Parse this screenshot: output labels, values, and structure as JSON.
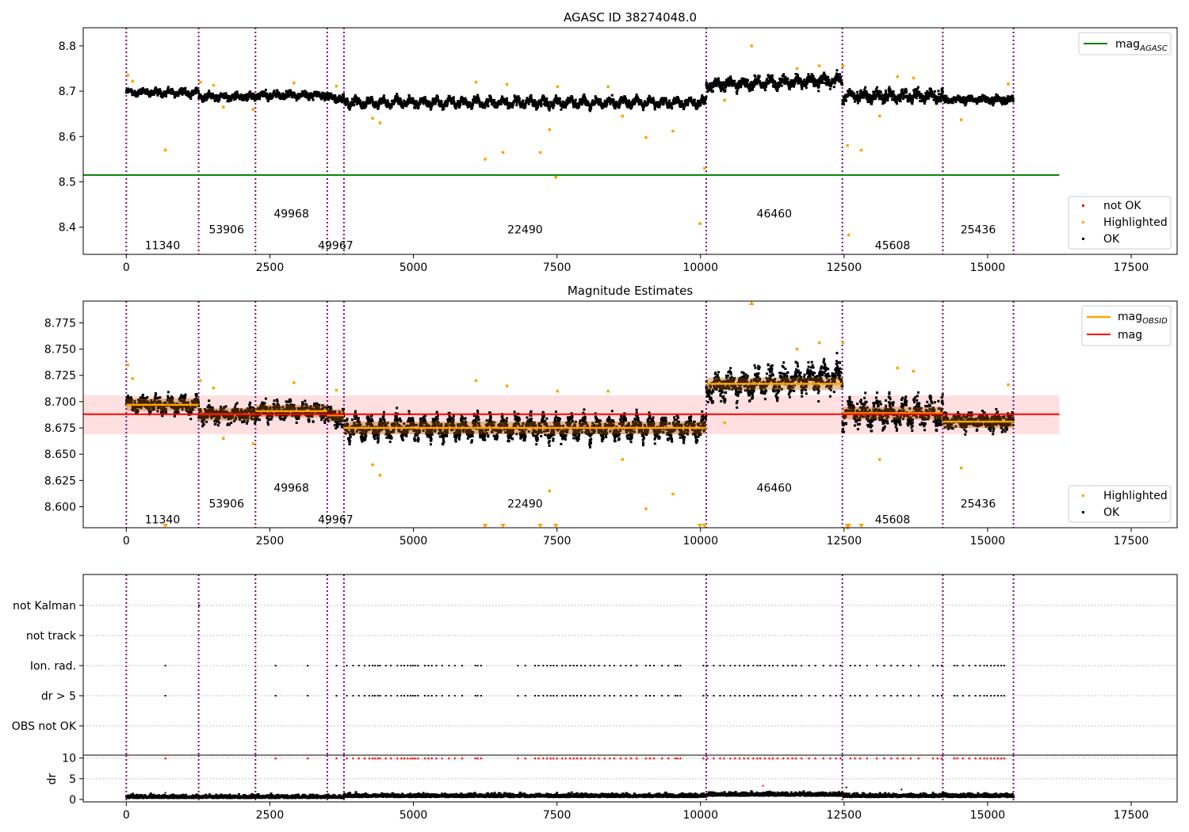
{
  "chart_data": [
    {
      "type": "scatter",
      "title": "AGASC ID 38274048.0",
      "xlim": [
        -750,
        18300
      ],
      "ylim": [
        8.34,
        8.84
      ],
      "xticks": [
        0,
        2500,
        5000,
        7500,
        10000,
        12500,
        15000,
        17500
      ],
      "xtick_labels": [
        "0",
        "2500",
        "5000",
        "7500",
        "10000",
        "12500",
        "15000",
        "17500"
      ],
      "yticks": [
        8.4,
        8.5,
        8.6,
        8.7,
        8.8
      ],
      "ytick_labels": [
        "8.4",
        "8.5",
        "8.6",
        "8.7",
        "8.8"
      ],
      "obsid_boundaries": [
        0,
        1260,
        2250,
        3500,
        3790,
        10100,
        12470,
        14220,
        15450
      ],
      "obsid_labels": [
        {
          "text": "11340",
          "x": 630,
          "y": 8.36
        },
        {
          "text": "53906",
          "x": 1745,
          "y": 8.395
        },
        {
          "text": "49968",
          "x": 2875,
          "y": 8.43
        },
        {
          "text": "49967",
          "x": 3645,
          "y": 8.36
        },
        {
          "text": "22490",
          "x": 6945,
          "y": 8.395
        },
        {
          "text": "46460",
          "x": 11285,
          "y": 8.43
        },
        {
          "text": "45608",
          "x": 13345,
          "y": 8.36
        },
        {
          "text": "25436",
          "x": 14835,
          "y": 8.395
        }
      ],
      "mag_agasc": 8.515,
      "mag_agasc_xrange": [
        -750,
        16250
      ],
      "segment_means": [
        8.697,
        8.688,
        8.691,
        8.687,
        8.675,
        8.717,
        8.689,
        8.681
      ],
      "highlighted": [
        [
          25,
          8.735
        ],
        [
          110,
          8.722
        ],
        [
          680,
          8.57
        ],
        [
          1290,
          8.72
        ],
        [
          1520,
          8.713
        ],
        [
          1690,
          8.665
        ],
        [
          2210,
          8.66
        ],
        [
          2920,
          8.718
        ],
        [
          3660,
          8.711
        ],
        [
          4290,
          8.64
        ],
        [
          4420,
          8.63
        ],
        [
          6090,
          8.72
        ],
        [
          6250,
          8.55
        ],
        [
          6560,
          8.565
        ],
        [
          6630,
          8.715
        ],
        [
          7210,
          8.565
        ],
        [
          7370,
          8.615
        ],
        [
          7480,
          8.51
        ],
        [
          7510,
          8.71
        ],
        [
          8390,
          8.71
        ],
        [
          8640,
          8.645
        ],
        [
          9050,
          8.598
        ],
        [
          9520,
          8.612
        ],
        [
          9990,
          8.408
        ],
        [
          10070,
          8.53
        ],
        [
          10420,
          8.68
        ],
        [
          10890,
          8.8
        ],
        [
          11680,
          8.75
        ],
        [
          12070,
          8.756
        ],
        [
          12480,
          8.756
        ],
        [
          12560,
          8.58
        ],
        [
          12580,
          8.383
        ],
        [
          12800,
          8.57
        ],
        [
          13120,
          8.645
        ],
        [
          13430,
          8.732
        ],
        [
          13710,
          8.729
        ],
        [
          14540,
          8.637
        ],
        [
          15360,
          8.716
        ]
      ],
      "legend_lines": [
        {
          "label": "mag",
          "subscript": "AGASC",
          "color": "#008000"
        }
      ],
      "legend_markers": [
        {
          "label": "not OK",
          "color": "#ff0000"
        },
        {
          "label": "Highlighted",
          "color": "#ffa500"
        },
        {
          "label": "OK",
          "color": "#000000"
        }
      ]
    },
    {
      "type": "scatter",
      "title": "Magnitude Estimates",
      "xlim": [
        -750,
        18300
      ],
      "ylim": [
        8.58,
        8.7957
      ],
      "xticks": [
        0,
        2500,
        5000,
        7500,
        10000,
        12500,
        15000,
        17500
      ],
      "xtick_labels": [
        "0",
        "2500",
        "5000",
        "7500",
        "10000",
        "12500",
        "15000",
        "17500"
      ],
      "yticks": [
        8.6,
        8.625,
        8.65,
        8.675,
        8.7,
        8.725,
        8.75,
        8.775
      ],
      "ytick_labels": [
        "8.600",
        "8.625",
        "8.650",
        "8.675",
        "8.700",
        "8.725",
        "8.750",
        "8.775"
      ],
      "obsid_labels": [
        {
          "text": "11340",
          "x": 630,
          "y": 8.588
        },
        {
          "text": "53906",
          "x": 1745,
          "y": 8.603
        },
        {
          "text": "49968",
          "x": 2875,
          "y": 8.618
        },
        {
          "text": "49967",
          "x": 3645,
          "y": 8.588
        },
        {
          "text": "22490",
          "x": 6945,
          "y": 8.603
        },
        {
          "text": "46460",
          "x": 11285,
          "y": 8.618
        },
        {
          "text": "45608",
          "x": 13345,
          "y": 8.588
        },
        {
          "text": "25436",
          "x": 14835,
          "y": 8.603
        }
      ],
      "mag": 8.688,
      "mag_band": [
        8.669,
        8.706
      ],
      "mag_xrange": [
        -750,
        16250
      ],
      "clipped_markers_x": [
        680,
        6250,
        6560,
        7210,
        7480,
        9990,
        10070,
        12560,
        12580,
        12800
      ],
      "clipped_top_x": [
        10890
      ],
      "legend_lines": [
        {
          "label": "mag",
          "subscript": "OBSID",
          "color": "#ffa500"
        },
        {
          "label": "mag",
          "subscript": "",
          "color": "#ff0000"
        }
      ],
      "legend_markers": [
        {
          "label": "Highlighted",
          "color": "#ffa500"
        },
        {
          "label": "OK",
          "color": "#000000"
        }
      ]
    },
    {
      "type": "scatter",
      "flag_rows": [
        "not Kalman",
        "not track",
        "Ion. rad.",
        "dr > 5",
        "OBS not OK"
      ],
      "not_kalman_x": [
        1270
      ],
      "flag_event_x": [
        680,
        2600,
        3160,
        3660,
        3840,
        3950,
        4050,
        4150,
        4230,
        4290,
        4330,
        4380,
        4420,
        4520,
        4610,
        4720,
        4790,
        4840,
        4900,
        4950,
        4990,
        5030,
        5080,
        5200,
        5260,
        5320,
        5400,
        5500,
        5620,
        5720,
        5850,
        6080,
        6120,
        6180,
        6820,
        6950,
        7120,
        7180,
        7260,
        7330,
        7390,
        7440,
        7500,
        7590,
        7650,
        7730,
        7790,
        7850,
        7920,
        7990,
        8080,
        8150,
        8230,
        8330,
        8420,
        8500,
        8610,
        8700,
        8790,
        8890,
        9050,
        9120,
        9190,
        9330,
        9440,
        9560,
        9600,
        9650,
        10050,
        10120,
        10230,
        10340,
        10410,
        10520,
        10600,
        10680,
        10760,
        10830,
        10920,
        10990,
        11040,
        11120,
        11200,
        11260,
        11340,
        11440,
        11520,
        11600,
        11660,
        11760,
        11890,
        12000,
        12140,
        12260,
        12360,
        12440,
        12610,
        12690,
        12780,
        12900,
        13070,
        13200,
        13320,
        13430,
        13530,
        13660,
        13800,
        14050,
        14130,
        14200,
        14420,
        14470,
        14570,
        14680,
        14790,
        14870,
        14940,
        14990,
        15060,
        15120,
        15180,
        15240,
        15290
      ]
    },
    {
      "type": "scatter",
      "ylabel": "dr",
      "xlim": [
        -750,
        18300
      ],
      "ylim": [
        -0.6,
        10.7
      ],
      "yticks": [
        0,
        5,
        10
      ],
      "ytick_labels": [
        "0",
        "5",
        "10"
      ],
      "xticks": [
        0,
        2500,
        5000,
        7500,
        10000,
        12500,
        15000,
        17500
      ],
      "xtick_labels": [
        "0",
        "2500",
        "5000",
        "7500",
        "10000",
        "12500",
        "15000",
        "17500"
      ],
      "clipped_above": 10,
      "outliers": [
        [
          680,
          1.6
        ],
        [
          11090,
          3.3
        ],
        [
          12540,
          2.9
        ],
        [
          13500,
          2.4
        ]
      ]
    }
  ]
}
